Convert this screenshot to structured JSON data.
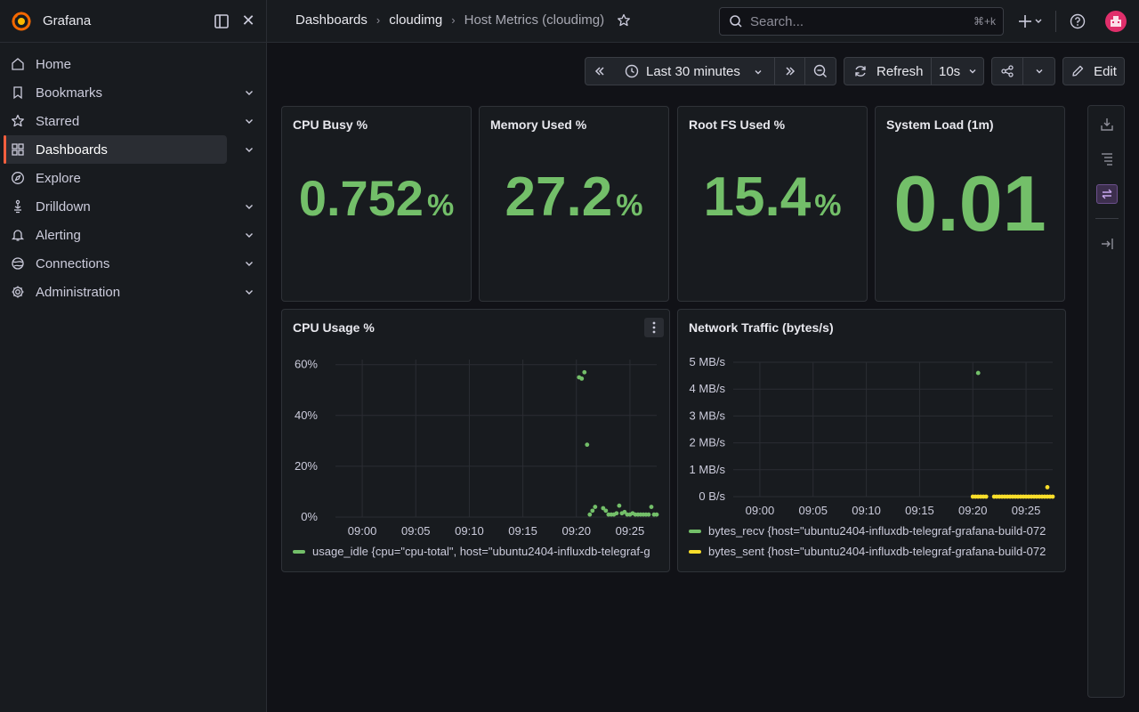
{
  "sidebar": {
    "brand": "Grafana",
    "items": [
      {
        "label": "Home",
        "icon": "home-icon",
        "chevron": false
      },
      {
        "label": "Bookmarks",
        "icon": "bookmark-icon",
        "chevron": true
      },
      {
        "label": "Starred",
        "icon": "star-icon",
        "chevron": true
      },
      {
        "label": "Dashboards",
        "icon": "apps-icon",
        "chevron": true,
        "active": true
      },
      {
        "label": "Explore",
        "icon": "compass-icon",
        "chevron": false
      },
      {
        "label": "Drilldown",
        "icon": "drilldown-icon",
        "chevron": true
      },
      {
        "label": "Alerting",
        "icon": "bell-icon",
        "chevron": true
      },
      {
        "label": "Connections",
        "icon": "connections-icon",
        "chevron": true
      },
      {
        "label": "Administration",
        "icon": "cog-icon",
        "chevron": true
      }
    ]
  },
  "breadcrumb": [
    "Dashboards",
    "cloudimg",
    "Host Metrics (cloudimg)"
  ],
  "search": {
    "placeholder": "Search...",
    "shortcut": "⌘+k"
  },
  "toolbar": {
    "time_range": "Last 30 minutes",
    "refresh_label": "Refresh",
    "refresh_interval": "10s",
    "edit_label": "Edit"
  },
  "stats": [
    {
      "title": "CPU Busy %",
      "value": "0.752",
      "unit": "%"
    },
    {
      "title": "Memory Used %",
      "value": "27.2",
      "unit": "%"
    },
    {
      "title": "Root FS Used %",
      "value": "15.4",
      "unit": "%"
    },
    {
      "title": "System Load (1m)",
      "value": "0.01",
      "unit": ""
    }
  ],
  "colors": {
    "stat_green": "#73bf69",
    "series_green": "#73bf69",
    "series_yellow": "#fade2a",
    "accent": "#f55f3e"
  },
  "chart_data": [
    {
      "type": "scatter",
      "title": "CPU Usage %",
      "x_ticks": [
        "09:00",
        "09:05",
        "09:10",
        "09:15",
        "09:20",
        "09:25"
      ],
      "y_ticks": [
        "60%",
        "40%",
        "20%",
        "0%"
      ],
      "xlim": [
        "08:57:30",
        "09:27:30"
      ],
      "ylim": [
        0,
        62
      ],
      "grid": true,
      "legend_placement": "bottom",
      "series": [
        {
          "name": "usage_idle {cpu=\"cpu-total\", host=\"ubuntu2404-influxdb-telegraf-g",
          "color": "#73bf69",
          "points": [
            [
              "09:20:15",
              55
            ],
            [
              "09:20:30",
              54.5
            ],
            [
              "09:20:45",
              57
            ],
            [
              "09:21:00",
              28.5
            ],
            [
              "09:21:15",
              1
            ],
            [
              "09:21:30",
              2.5
            ],
            [
              "09:21:45",
              4
            ],
            [
              "09:22:30",
              3.5
            ],
            [
              "09:22:45",
              2.5
            ],
            [
              "09:23:00",
              1
            ],
            [
              "09:23:15",
              1
            ],
            [
              "09:23:30",
              1
            ],
            [
              "09:23:45",
              1.5
            ],
            [
              "09:24:00",
              4.5
            ],
            [
              "09:24:15",
              1.5
            ],
            [
              "09:24:30",
              2
            ],
            [
              "09:24:45",
              1
            ],
            [
              "09:25:00",
              1
            ],
            [
              "09:25:15",
              1.5
            ],
            [
              "09:25:30",
              1
            ],
            [
              "09:25:45",
              1
            ],
            [
              "09:26:00",
              1
            ],
            [
              "09:26:15",
              1
            ],
            [
              "09:26:30",
              1
            ],
            [
              "09:26:45",
              1
            ],
            [
              "09:27:00",
              4
            ],
            [
              "09:27:15",
              1
            ],
            [
              "09:27:30",
              1
            ]
          ]
        }
      ]
    },
    {
      "type": "scatter",
      "title": "Network Traffic (bytes/s)",
      "x_ticks": [
        "09:00",
        "09:05",
        "09:10",
        "09:15",
        "09:20",
        "09:25"
      ],
      "y_ticks": [
        "5 MB/s",
        "4 MB/s",
        "3 MB/s",
        "2 MB/s",
        "1 MB/s",
        "0 B/s"
      ],
      "xlim": [
        "08:57:30",
        "09:27:30"
      ],
      "ylim": [
        0,
        5
      ],
      "y_unit": "MB/s",
      "grid": true,
      "legend_placement": "bottom",
      "series": [
        {
          "name": "bytes_recv {host=\"ubuntu2404-influxdb-telegraf-grafana-build-072",
          "color": "#73bf69",
          "points": [
            [
              "09:20:30",
              4.6
            ]
          ]
        },
        {
          "name": "bytes_sent {host=\"ubuntu2404-influxdb-telegraf-grafana-build-072",
          "color": "#fade2a",
          "points": [
            [
              "09:20:00",
              0
            ],
            [
              "09:20:15",
              0
            ],
            [
              "09:20:30",
              0
            ],
            [
              "09:20:45",
              0
            ],
            [
              "09:21:00",
              0
            ],
            [
              "09:21:15",
              0
            ],
            [
              "09:22:00",
              0
            ],
            [
              "09:22:15",
              0
            ],
            [
              "09:22:30",
              0
            ],
            [
              "09:22:45",
              0
            ],
            [
              "09:23:00",
              0
            ],
            [
              "09:23:15",
              0
            ],
            [
              "09:23:30",
              0
            ],
            [
              "09:23:45",
              0
            ],
            [
              "09:24:00",
              0
            ],
            [
              "09:24:15",
              0
            ],
            [
              "09:24:30",
              0
            ],
            [
              "09:24:45",
              0
            ],
            [
              "09:25:00",
              0
            ],
            [
              "09:25:15",
              0
            ],
            [
              "09:25:30",
              0
            ],
            [
              "09:25:45",
              0
            ],
            [
              "09:26:00",
              0
            ],
            [
              "09:26:15",
              0
            ],
            [
              "09:26:30",
              0
            ],
            [
              "09:26:45",
              0
            ],
            [
              "09:27:00",
              0
            ],
            [
              "09:27:00",
              0.35
            ],
            [
              "09:27:15",
              0
            ],
            [
              "09:27:30",
              0
            ]
          ]
        }
      ]
    }
  ]
}
